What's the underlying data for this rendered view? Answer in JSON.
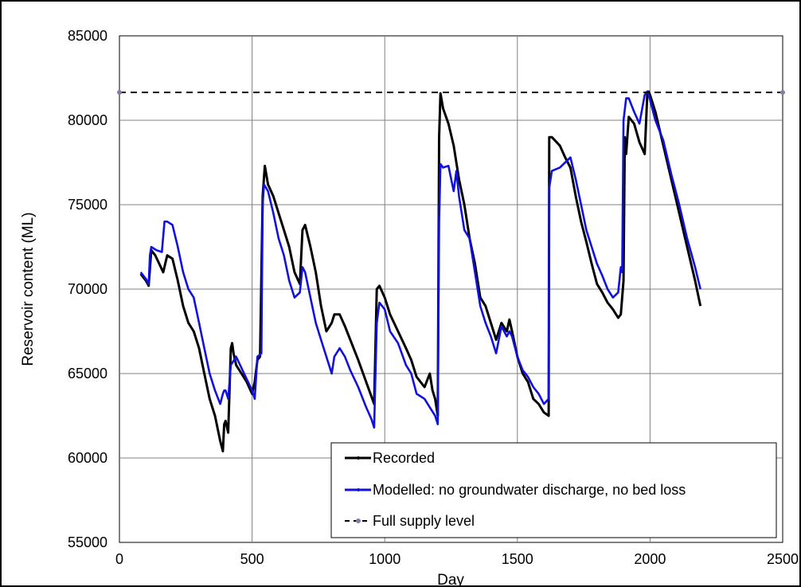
{
  "chart_data": {
    "type": "line",
    "title": "",
    "xlabel": "Day",
    "ylabel": "Reservoir content (ML)",
    "xlim": [
      0,
      2500
    ],
    "ylim": [
      55000,
      85000
    ],
    "xticks": [
      0,
      500,
      1000,
      1500,
      2000,
      2500
    ],
    "yticks": [
      55000,
      60000,
      65000,
      70000,
      75000,
      80000,
      85000
    ],
    "grid": true,
    "legend_position": "bottom-right",
    "series": [
      {
        "name": "Recorded",
        "color": "#000000",
        "style": "solid-with-small-markers",
        "x": [
          80,
          100,
          110,
          120,
          135,
          150,
          165,
          180,
          200,
          220,
          240,
          260,
          280,
          300,
          320,
          340,
          360,
          380,
          390,
          395,
          400,
          410,
          420,
          425,
          430,
          440,
          460,
          480,
          500,
          510,
          520,
          530,
          540,
          548,
          560,
          580,
          600,
          620,
          640,
          660,
          680,
          690,
          700,
          720,
          740,
          760,
          780,
          800,
          810,
          830,
          850,
          870,
          900,
          930,
          960,
          970,
          980,
          1000,
          1020,
          1050,
          1080,
          1100,
          1120,
          1150,
          1170,
          1180,
          1190,
          1200,
          1205,
          1210,
          1220,
          1240,
          1260,
          1280,
          1300,
          1320,
          1340,
          1360,
          1380,
          1400,
          1420,
          1440,
          1460,
          1470,
          1480,
          1500,
          1520,
          1540,
          1560,
          1580,
          1600,
          1618,
          1620,
          1630,
          1660,
          1680,
          1700,
          1720,
          1740,
          1760,
          1780,
          1800,
          1820,
          1840,
          1860,
          1880,
          1890,
          1900,
          1905,
          1910,
          1920,
          1940,
          1960,
          1980,
          1990,
          1995,
          2000,
          2020,
          2050,
          2080,
          2110,
          2140,
          2170,
          2190
        ],
        "values": [
          70900,
          70500,
          70200,
          72300,
          72000,
          71500,
          71000,
          72000,
          71800,
          70500,
          69000,
          68000,
          67500,
          66500,
          65000,
          63500,
          62500,
          61000,
          60400,
          62000,
          62200,
          61500,
          66500,
          66800,
          66200,
          65500,
          65000,
          64500,
          63800,
          64500,
          65800,
          66000,
          75500,
          77300,
          76200,
          75500,
          74500,
          73500,
          72500,
          71000,
          70300,
          73500,
          73800,
          72500,
          71000,
          69000,
          67500,
          68000,
          68500,
          68500,
          67800,
          67000,
          65800,
          64500,
          63200,
          70000,
          70200,
          69500,
          68500,
          67500,
          66500,
          65800,
          64800,
          64200,
          65000,
          64000,
          63500,
          62500,
          79000,
          81600,
          80700,
          79800,
          78500,
          76500,
          75000,
          73000,
          71500,
          69500,
          69000,
          68000,
          67000,
          68000,
          67500,
          68200,
          67500,
          66000,
          65000,
          64500,
          63500,
          63200,
          62700,
          62500,
          79000,
          79000,
          78500,
          77800,
          77200,
          75500,
          74000,
          72800,
          71500,
          70300,
          69800,
          69200,
          68800,
          68300,
          68500,
          70500,
          79000,
          78000,
          80200,
          79800,
          78700,
          78000,
          81700,
          81700,
          81500,
          80500,
          78500,
          76500,
          74500,
          72500,
          70500,
          69000
        ]
      },
      {
        "name": "Modelled: no groundwater discharge, no bed loss",
        "color": "#1010e0",
        "style": "solid-with-small-markers",
        "x": [
          80,
          100,
          110,
          115,
          120,
          140,
          160,
          170,
          180,
          200,
          220,
          240,
          260,
          280,
          300,
          320,
          340,
          360,
          380,
          390,
          395,
          400,
          410,
          420,
          440,
          470,
          500,
          510,
          520,
          535,
          540,
          545,
          560,
          580,
          600,
          620,
          640,
          660,
          680,
          690,
          700,
          720,
          740,
          760,
          780,
          800,
          810,
          830,
          850,
          870,
          900,
          930,
          950,
          960,
          970,
          980,
          990,
          1000,
          1020,
          1050,
          1080,
          1100,
          1120,
          1150,
          1170,
          1190,
          1200,
          1205,
          1210,
          1220,
          1240,
          1260,
          1270,
          1280,
          1300,
          1320,
          1340,
          1360,
          1380,
          1400,
          1420,
          1440,
          1460,
          1470,
          1480,
          1500,
          1520,
          1540,
          1560,
          1580,
          1600,
          1618,
          1620,
          1630,
          1660,
          1680,
          1700,
          1720,
          1740,
          1760,
          1780,
          1800,
          1820,
          1840,
          1860,
          1880,
          1890,
          1895,
          1900,
          1910,
          1920,
          1940,
          1960,
          1980,
          1990,
          1995,
          2000,
          2020,
          2050,
          2080,
          2110,
          2140,
          2170,
          2190
        ],
        "values": [
          71000,
          70600,
          70300,
          72000,
          72500,
          72300,
          72200,
          74000,
          74000,
          73800,
          72500,
          71000,
          70000,
          69500,
          68000,
          66500,
          65000,
          64000,
          63200,
          63800,
          64000,
          64000,
          63500,
          65500,
          66000,
          65000,
          64000,
          63500,
          66000,
          66200,
          75000,
          76200,
          75800,
          74500,
          73000,
          72000,
          70500,
          69500,
          69800,
          71300,
          71000,
          69500,
          68000,
          67000,
          66000,
          65000,
          66000,
          66500,
          66000,
          65200,
          64200,
          63000,
          62300,
          61800,
          68000,
          69200,
          69000,
          68800,
          67500,
          66800,
          65500,
          65000,
          63800,
          63500,
          63000,
          62500,
          62000,
          74000,
          77400,
          77200,
          77300,
          75800,
          77000,
          75500,
          73500,
          73000,
          71000,
          69000,
          68000,
          67200,
          66200,
          67800,
          67200,
          67500,
          67200,
          66000,
          65200,
          64800,
          64200,
          63800,
          63200,
          63500,
          76000,
          77000,
          77200,
          77500,
          77800,
          76500,
          75000,
          73500,
          72500,
          71500,
          70800,
          70000,
          69500,
          69800,
          71300,
          71000,
          80000,
          81300,
          81300,
          80500,
          79800,
          81500,
          81700,
          81500,
          81200,
          80000,
          78800,
          76800,
          75000,
          73000,
          71300,
          70000
        ]
      },
      {
        "name": "Full supply level",
        "color": "#000000",
        "style": "dashed",
        "marker_color": "#8a7aa6",
        "x": [
          0,
          2500
        ],
        "values": [
          81650,
          81650
        ]
      }
    ]
  }
}
